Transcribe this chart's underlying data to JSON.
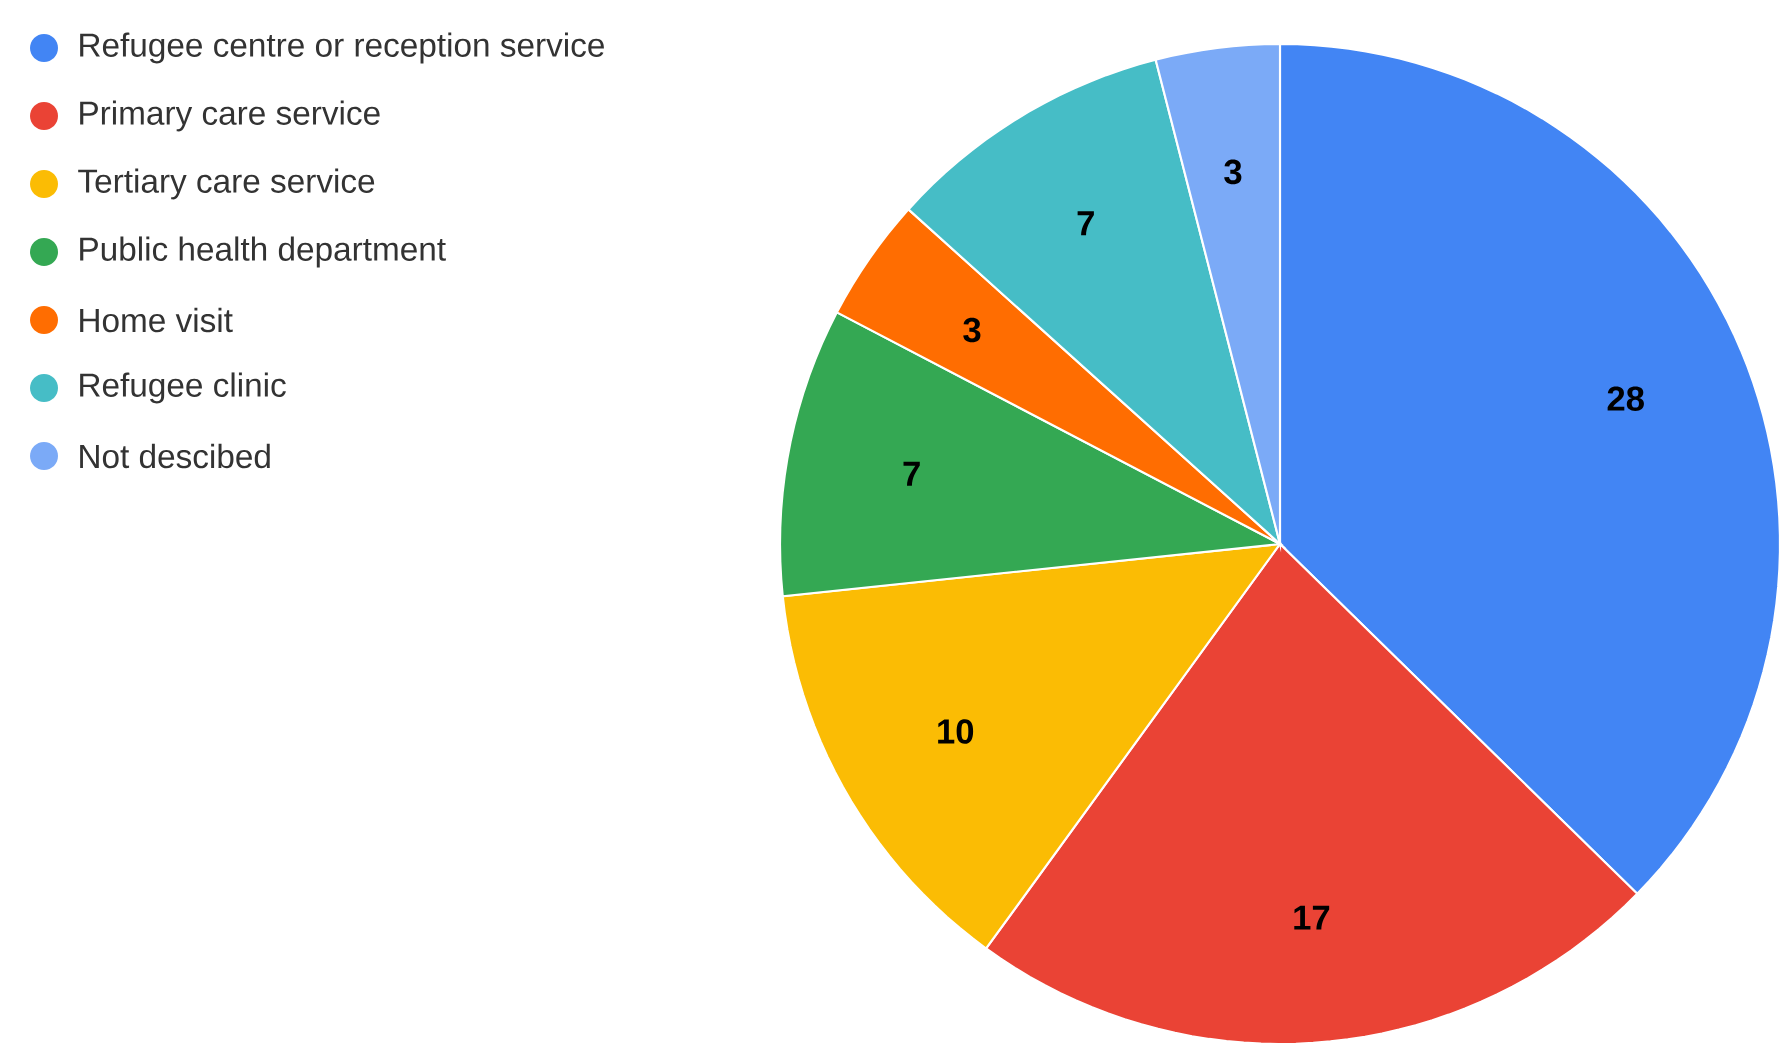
{
  "chart_data": {
    "type": "pie",
    "categories": [
      "Refugee centre or reception service",
      "Primary care service",
      "Tertiary care service",
      "Public health department",
      "Home visit",
      "Refugee clinic",
      "Not descibed"
    ],
    "values": [
      28,
      17,
      10,
      7,
      3,
      7,
      3
    ],
    "colors": [
      "#4285f4",
      "#ea4335",
      "#fbbc04",
      "#34a853",
      "#ff6d01",
      "#46bdc6",
      "#7baaf7"
    ],
    "data_labels": true,
    "legend": "top left"
  }
}
